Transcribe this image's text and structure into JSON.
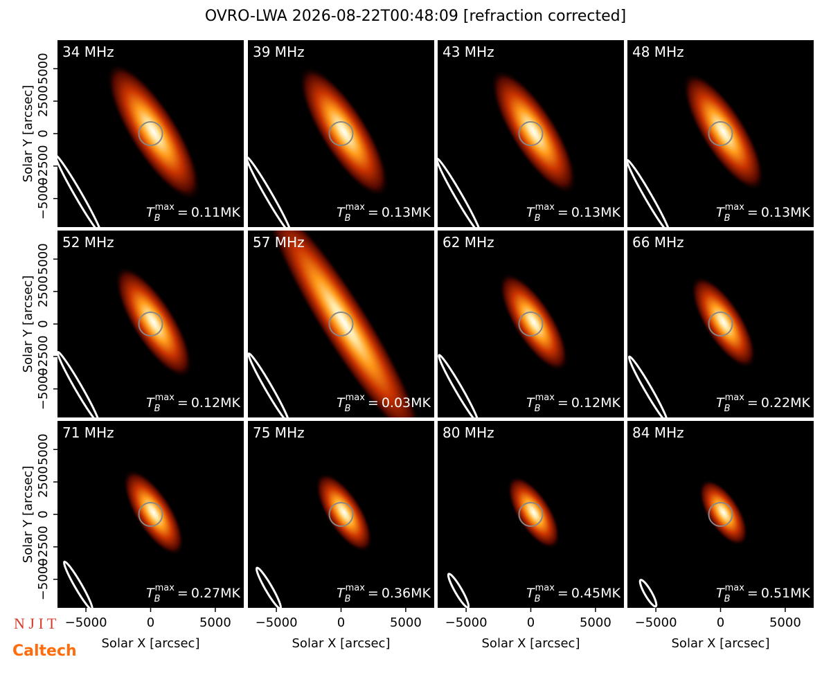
{
  "title": "OVRO-LWA 2026-08-22T00:48:09 [refraction corrected]",
  "x_label": "Solar X [arcsec]",
  "y_label": "Solar Y [arcsec]",
  "xlim": [
    -7200,
    7200
  ],
  "ylim": [
    -7200,
    7200
  ],
  "xticks": [
    {
      "value": -5000,
      "label": "−5000"
    },
    0,
    5000
  ],
  "yticks": [
    {
      "value": -5000,
      "label": "−5000"
    },
    {
      "value": -2500,
      "label": "−2500"
    },
    0,
    2500,
    5000
  ],
  "tmax_symbol": "T",
  "tmax_sub": "B",
  "tmax_sup": "max",
  "tmax_equals": "=",
  "panels": [
    {
      "freq": "34 MHz",
      "tmax": "0.11MK"
    },
    {
      "freq": "39 MHz",
      "tmax": "0.13MK"
    },
    {
      "freq": "43 MHz",
      "tmax": "0.13MK"
    },
    {
      "freq": "48 MHz",
      "tmax": "0.13MK"
    },
    {
      "freq": "52 MHz",
      "tmax": "0.12MK"
    },
    {
      "freq": "57 MHz",
      "tmax": "0.03MK"
    },
    {
      "freq": "62 MHz",
      "tmax": "0.12MK"
    },
    {
      "freq": "66 MHz",
      "tmax": "0.22MK"
    },
    {
      "freq": "71 MHz",
      "tmax": "0.27MK"
    },
    {
      "freq": "75 MHz",
      "tmax": "0.36MK"
    },
    {
      "freq": "80 MHz",
      "tmax": "0.45MK"
    },
    {
      "freq": "84 MHz",
      "tmax": "0.51MK"
    }
  ],
  "logos": [
    "N J I T",
    "Caltech"
  ]
}
